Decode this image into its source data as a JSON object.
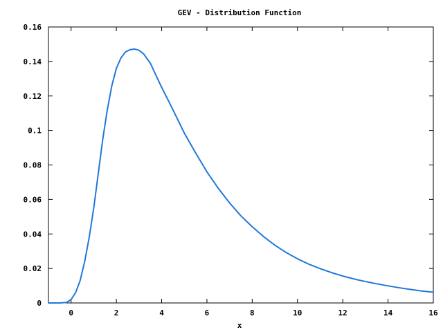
{
  "chart_data": {
    "type": "line",
    "title": "GEV - Distribution Function",
    "xlabel": "x",
    "ylabel": "",
    "xlim": [
      -1,
      16
    ],
    "ylim": [
      0,
      0.16
    ],
    "x_ticks": [
      0,
      2,
      4,
      6,
      8,
      10,
      12,
      14,
      16
    ],
    "x_tick_labels": [
      "0",
      "2",
      "4",
      "6",
      "8",
      "10",
      "12",
      "14",
      "16"
    ],
    "y_ticks": [
      0,
      0.02,
      0.04,
      0.06,
      0.08,
      0.1,
      0.12,
      0.14,
      0.16
    ],
    "y_tick_labels": [
      "0",
      "0.02",
      "0.04",
      "0.06",
      "0.08",
      "0.1",
      "0.12",
      "0.14",
      "0.16"
    ],
    "grid": false,
    "legend": "none",
    "series": [
      {
        "color": "#1f78d8",
        "x": [
          -1,
          -0.5,
          -0.2,
          0,
          0.2,
          0.4,
          0.6,
          0.8,
          1.0,
          1.2,
          1.4,
          1.6,
          1.8,
          2.0,
          2.2,
          2.4,
          2.6,
          2.8,
          3.0,
          3.2,
          3.5,
          4.0,
          4.5,
          5.0,
          5.5,
          6.0,
          6.5,
          7.0,
          7.5,
          8.0,
          8.5,
          9.0,
          9.5,
          10.0,
          10.5,
          11.0,
          11.5,
          12.0,
          12.5,
          13.0,
          13.5,
          14.0,
          14.5,
          15.0,
          15.5,
          16.0
        ],
        "y": [
          0,
          0,
          0.0003,
          0.002,
          0.006,
          0.013,
          0.024,
          0.038,
          0.055,
          0.075,
          0.095,
          0.112,
          0.126,
          0.136,
          0.142,
          0.1455,
          0.1468,
          0.1472,
          0.1465,
          0.1445,
          0.139,
          0.125,
          0.112,
          0.0985,
          0.087,
          0.076,
          0.0665,
          0.058,
          0.0505,
          0.0442,
          0.0385,
          0.0335,
          0.0292,
          0.0256,
          0.0225,
          0.0199,
          0.0176,
          0.0156,
          0.0139,
          0.0124,
          0.0111,
          0.0099,
          0.0088,
          0.0078,
          0.0069,
          0.0062
        ]
      }
    ]
  }
}
